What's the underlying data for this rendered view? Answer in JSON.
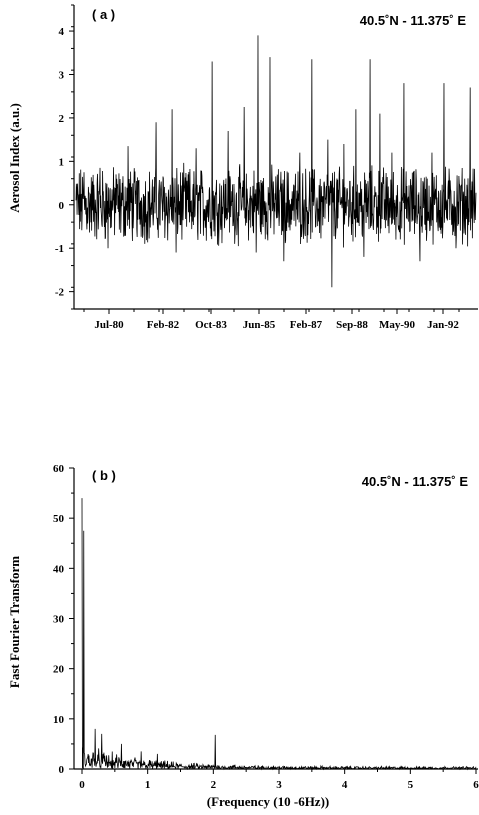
{
  "chart_data": [
    {
      "type": "line",
      "panel_label": "( a )",
      "location_label": "40.5˚N - 11.375˚ E",
      "ylabel": "Aerosol Index (a.u.)",
      "xlabel": "",
      "ylim": [
        -2.4,
        4.6
      ],
      "yticks": [
        -2,
        -1,
        0,
        1,
        2,
        3,
        4
      ],
      "xticks": [
        "Jul-80",
        "Feb-82",
        "Oct-83",
        "Jun-85",
        "Feb-87",
        "Sep-88",
        "May-90",
        "Jan-92"
      ],
      "spikes": [
        {
          "x": 0.02,
          "y": 0.75
        },
        {
          "x": 0.06,
          "y": 0.85
        },
        {
          "x": 0.1,
          "y": 0.7
        },
        {
          "x": 0.13,
          "y": 1.35
        },
        {
          "x": 0.2,
          "y": 1.9
        },
        {
          "x": 0.24,
          "y": 2.2
        },
        {
          "x": 0.3,
          "y": 1.3
        },
        {
          "x": 0.34,
          "y": 3.3
        },
        {
          "x": 0.38,
          "y": 1.7
        },
        {
          "x": 0.42,
          "y": 2.25
        },
        {
          "x": 0.455,
          "y": 3.9
        },
        {
          "x": 0.485,
          "y": 3.4
        },
        {
          "x": 0.52,
          "y": 2.2
        },
        {
          "x": 0.56,
          "y": 1.2
        },
        {
          "x": 0.59,
          "y": 3.35
        },
        {
          "x": 0.63,
          "y": 1.5
        },
        {
          "x": 0.67,
          "y": 1.4
        },
        {
          "x": 0.7,
          "y": 2.2
        },
        {
          "x": 0.735,
          "y": 3.35
        },
        {
          "x": 0.76,
          "y": 2.1
        },
        {
          "x": 0.79,
          "y": 1.2
        },
        {
          "x": 0.82,
          "y": 2.8
        },
        {
          "x": 0.86,
          "y": 1.4
        },
        {
          "x": 0.89,
          "y": 1.2
        },
        {
          "x": 0.92,
          "y": 2.8
        },
        {
          "x": 0.95,
          "y": 1.5
        },
        {
          "x": 0.985,
          "y": 2.7
        }
      ],
      "dips": [
        {
          "x": 0.08,
          "y": -1.0
        },
        {
          "x": 0.25,
          "y": -1.1
        },
        {
          "x": 0.45,
          "y": -1.1
        },
        {
          "x": 0.52,
          "y": -1.3
        },
        {
          "x": 0.64,
          "y": -1.9
        },
        {
          "x": 0.72,
          "y": -1.2
        },
        {
          "x": 0.86,
          "y": -1.3
        },
        {
          "x": 0.95,
          "y": -1.0
        }
      ]
    },
    {
      "type": "line",
      "panel_label": "( b )",
      "location_label": "40.5˚N - 11.375˚ E",
      "ylabel": "Fast Fourier Transform",
      "xlabel": "(Frequency (10 -6Hz))",
      "xlim": [
        0,
        6
      ],
      "ylim": [
        0,
        60
      ],
      "xticks": [
        0,
        1,
        2,
        3,
        4,
        5,
        6
      ],
      "yticks": [
        0,
        10,
        20,
        30,
        40,
        50,
        60
      ],
      "peaks": [
        {
          "x": 0.0,
          "y": 54
        },
        {
          "x": 0.03,
          "y": 47.5
        },
        {
          "x": 0.2,
          "y": 8
        },
        {
          "x": 0.3,
          "y": 7
        },
        {
          "x": 0.6,
          "y": 5
        },
        {
          "x": 0.9,
          "y": 3.5
        },
        {
          "x": 1.15,
          "y": 3
        },
        {
          "x": 2.03,
          "y": 6.8
        }
      ]
    }
  ]
}
